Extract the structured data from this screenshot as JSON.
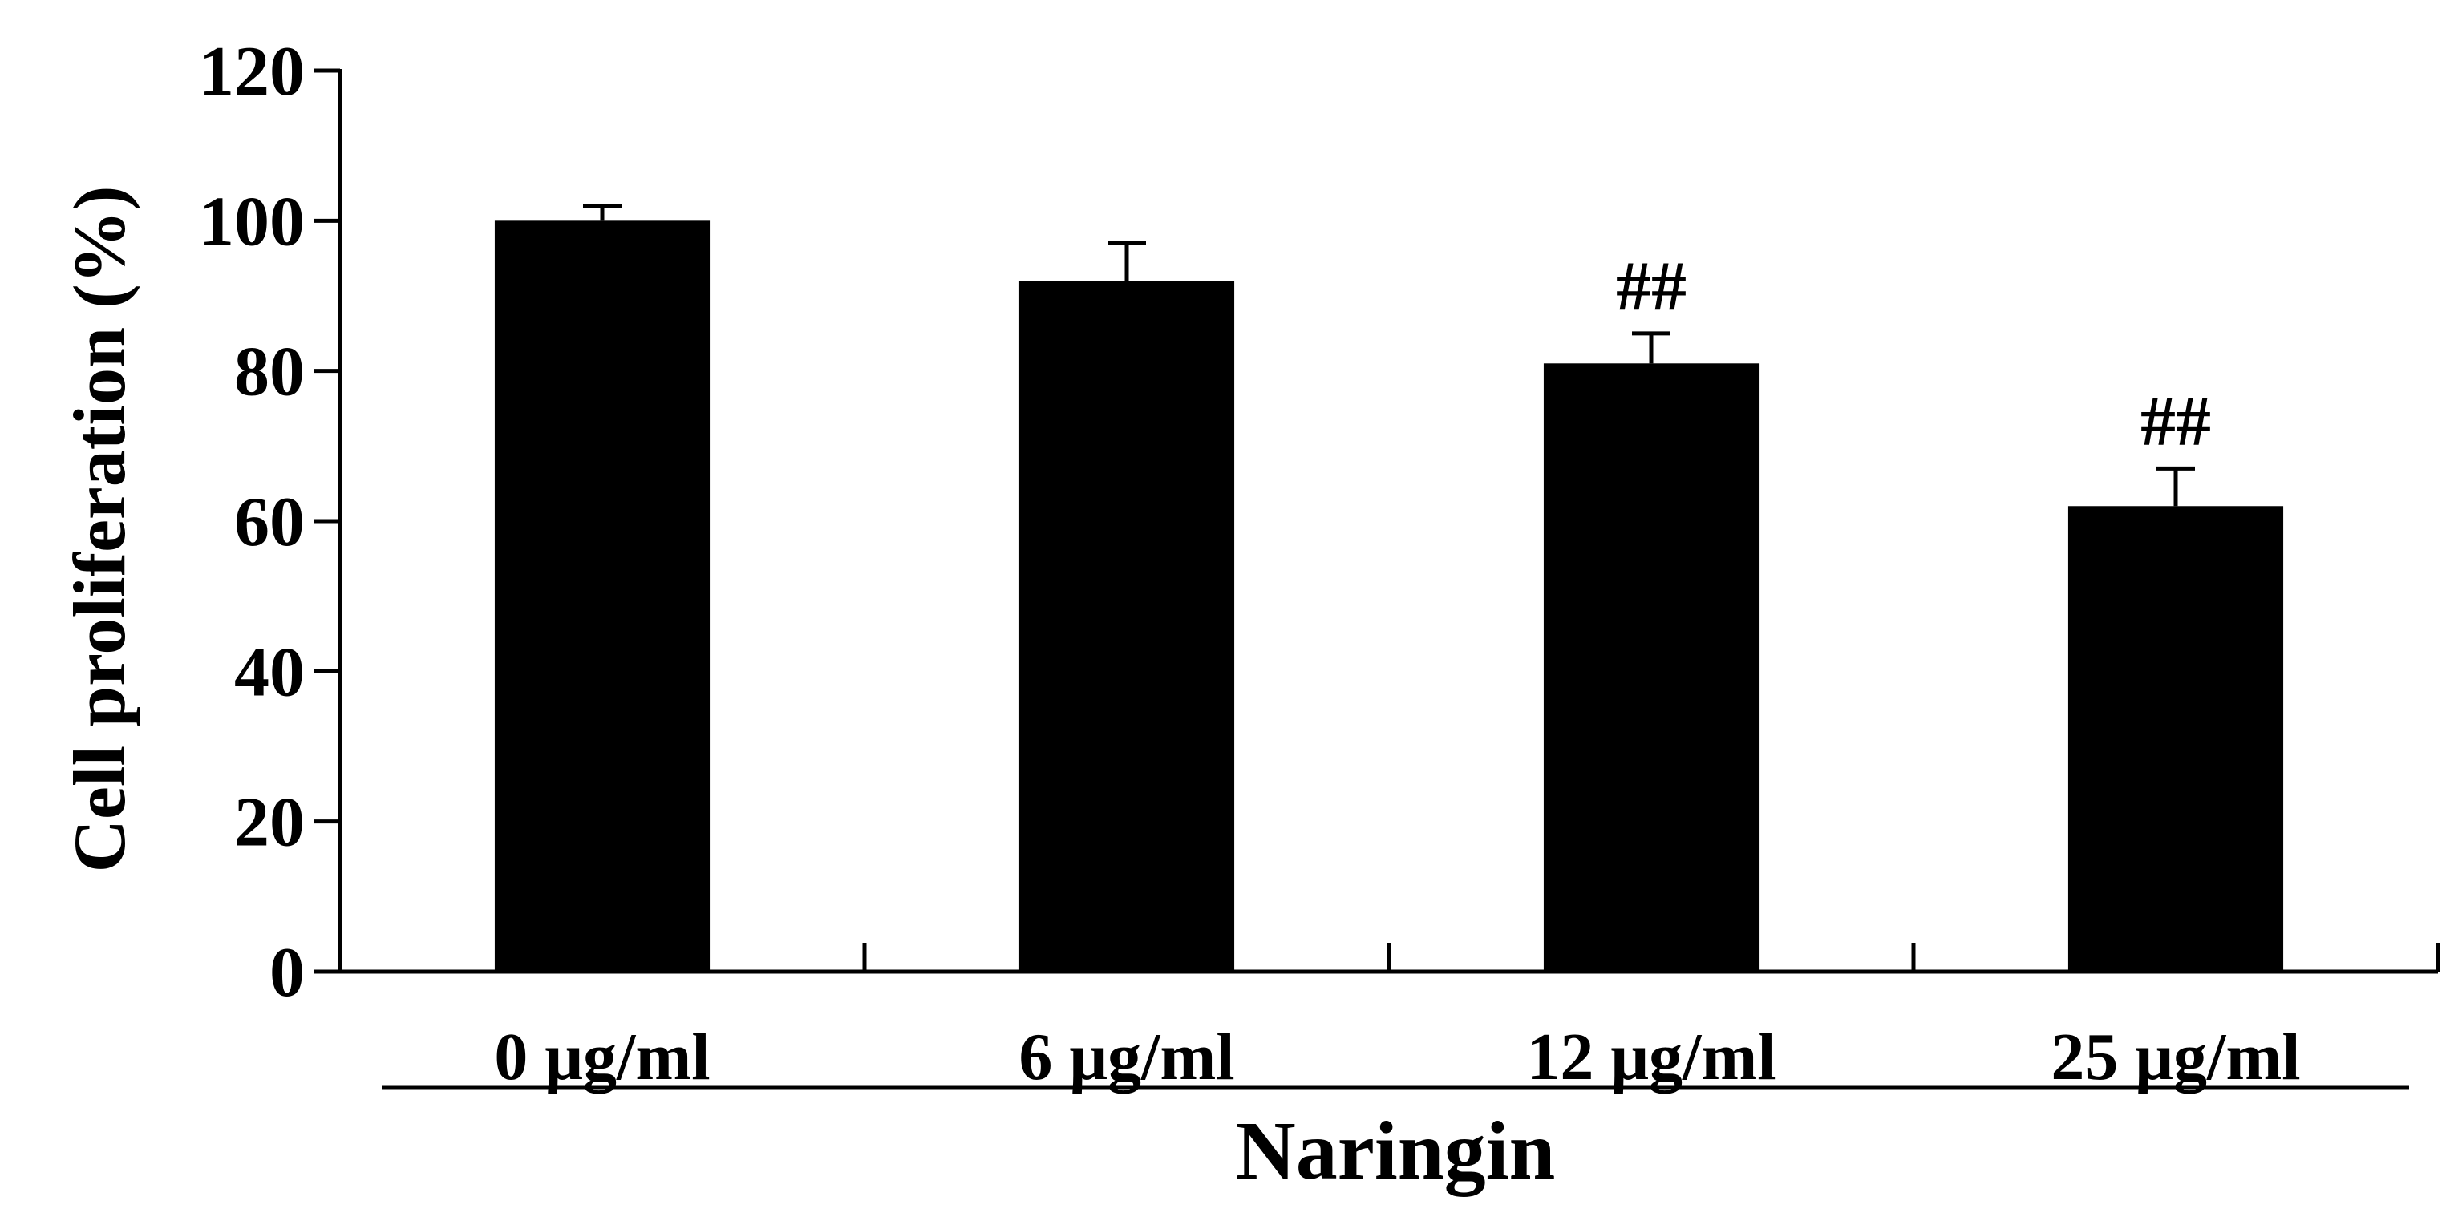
{
  "chart_data": {
    "type": "bar",
    "categories": [
      "0 μg/ml",
      "6 μg/ml",
      "12 μg/ml",
      "25 μg/ml"
    ],
    "values": [
      100,
      92,
      81,
      62
    ],
    "errors": [
      2,
      5,
      4,
      5
    ],
    "annotations": [
      "",
      "",
      "##",
      "##"
    ],
    "ylabel": "Cell proliferation (%)",
    "group_label": "Naringin",
    "ylim": [
      0,
      120
    ],
    "yticks": [
      0,
      20,
      40,
      60,
      80,
      100,
      120
    ],
    "bar_color": "#000000",
    "grid": false
  }
}
